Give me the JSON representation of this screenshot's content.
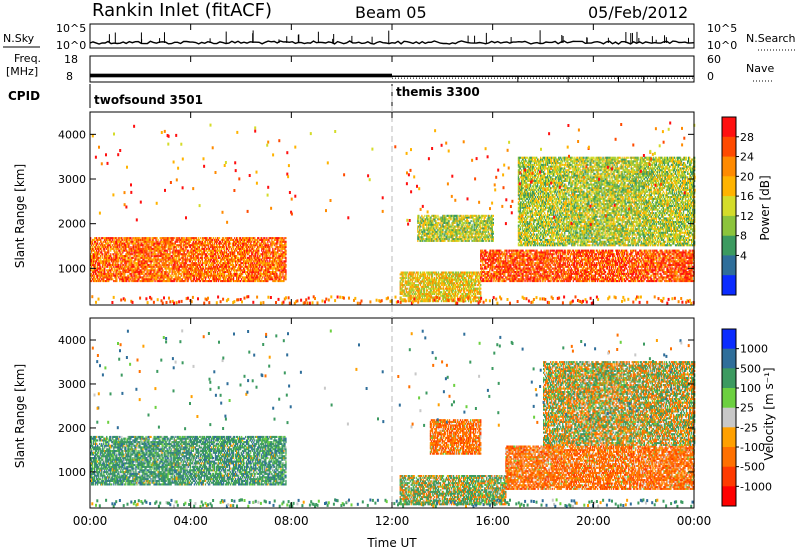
{
  "header": {
    "station": "Rankin Inlet (fitACF)",
    "beam": "Beam 05",
    "date": "05/Feb/2012"
  },
  "top_panels": {
    "nsky_label": "N.Sky",
    "nsearch_label": "N.Search",
    "left_ticks": [
      "10^5",
      "10^0"
    ],
    "right_ticks": [
      "10^5",
      "10^0"
    ],
    "freq_label_1": "Freq.",
    "freq_label_2": "[MHz]",
    "freq_ticks": [
      "18",
      "8"
    ],
    "nave_label": "Nave",
    "nave_ticks": [
      "60",
      "0"
    ],
    "cpid_label": "CPID",
    "cpid_programs": [
      {
        "name": "twofsound 3501",
        "start_hour": 0
      },
      {
        "name": "themis 3300",
        "start_hour": 12
      }
    ]
  },
  "time_axis": {
    "label": "Time UT",
    "ticks": [
      "00:00",
      "04:00",
      "08:00",
      "12:00",
      "16:00",
      "20:00",
      "00:00"
    ],
    "tick_hours": [
      0,
      4,
      8,
      12,
      16,
      20,
      24
    ]
  },
  "range_axis": {
    "label": "Slant Range [km]",
    "ticks": [
      "1000",
      "2000",
      "3000",
      "4000"
    ],
    "tick_values": [
      1000,
      2000,
      3000,
      4000
    ],
    "range": [
      180,
      4500
    ]
  },
  "power_colorbar": {
    "label": "Power [dB]",
    "ticks": [
      "28",
      "24",
      "20",
      "16",
      "12",
      "8",
      "4"
    ],
    "colors": [
      "#ff1010",
      "#ff4a00",
      "#ff8a00",
      "#ffb300",
      "#d4dc2a",
      "#8cc43c",
      "#3c9a60",
      "#2f6e9a",
      "#0b2cff"
    ]
  },
  "velocity_colorbar": {
    "label": "Velocity [m s⁻¹]",
    "ticks": [
      "1000",
      "500",
      "100",
      "25",
      "-25",
      "-100",
      "-500",
      "-1000"
    ],
    "colors": [
      "#0b2cff",
      "#2f6e9a",
      "#3c9a60",
      "#6cd040",
      "#c8c8c8",
      "#ffa000",
      "#ff7000",
      "#ff3a00",
      "#ff0000"
    ]
  },
  "chart_data": {
    "type": "heatmap",
    "title": "Rankin Inlet (fitACF)",
    "xlabel": "Time UT",
    "ylabel": "Slant Range [km]",
    "xlim": [
      0,
      24
    ],
    "ylim": [
      180,
      4500
    ],
    "grid": false,
    "series": [
      {
        "name": "Power [dB]",
        "regions": [
          {
            "t0": 0.0,
            "t1": 7.8,
            "r0": 700,
            "r1": 1700,
            "value": 24
          },
          {
            "t0": 12.3,
            "t1": 15.5,
            "r0": 250,
            "r1": 900,
            "value": 16
          },
          {
            "t0": 15.5,
            "t1": 24.0,
            "r0": 700,
            "r1": 1400,
            "value": 26
          },
          {
            "t0": 13.0,
            "t1": 16.0,
            "r0": 1600,
            "r1": 2200,
            "value": 12
          },
          {
            "t0": 17.0,
            "t1": 24.0,
            "r0": 1500,
            "r1": 3500,
            "value": 12
          }
        ]
      },
      {
        "name": "Velocity [m s⁻¹]",
        "regions": [
          {
            "t0": 0.0,
            "t1": 7.8,
            "r0": 700,
            "r1": 1800,
            "value": 300
          },
          {
            "t0": 12.3,
            "t1": 16.5,
            "r0": 250,
            "r1": 900,
            "value": 100
          },
          {
            "t0": 13.5,
            "t1": 15.5,
            "r0": 1400,
            "r1": 2200,
            "value": -300
          },
          {
            "t0": 16.5,
            "t1": 24.0,
            "r0": 600,
            "r1": 1600,
            "value": -300
          },
          {
            "t0": 18.0,
            "t1": 24.0,
            "r0": 1600,
            "r1": 3500,
            "value": 0
          }
        ]
      }
    ],
    "frequency_mhz": [
      {
        "t0": 0,
        "t1": 12,
        "value": 10.5
      },
      {
        "t0": 12,
        "t1": 24,
        "value": 10.0
      }
    ]
  }
}
